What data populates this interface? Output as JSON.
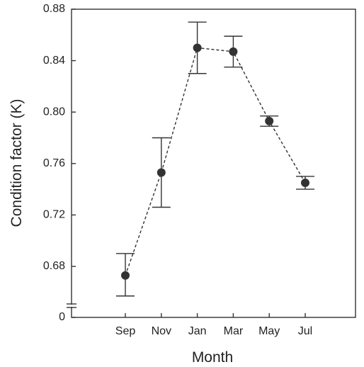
{
  "chart_data": {
    "type": "line",
    "xlabel": "Month",
    "ylabel": "Condition factor (K)",
    "categories": [
      "Sep",
      "Nov",
      "Jan",
      "Mar",
      "May",
      "Jul"
    ],
    "ylim": [
      0.64,
      0.88
    ],
    "yticks": [
      "0.68",
      "0.72",
      "0.76",
      "0.80",
      "0.84",
      "0.88"
    ],
    "y_axis_break_label": "0",
    "series": [
      {
        "values": [
          0.673,
          0.753,
          0.85,
          0.847,
          0.793,
          0.745
        ],
        "error_upper": [
          0.69,
          0.78,
          0.87,
          0.859,
          0.797,
          0.75
        ],
        "error_lower": [
          0.657,
          0.726,
          0.83,
          0.835,
          0.789,
          0.74
        ],
        "line_style": "dashed",
        "marker": "circle"
      }
    ],
    "colors": {
      "marker": "#333333",
      "line": "#333333",
      "axis": "#333333"
    },
    "grid": false,
    "axis_break": true
  }
}
